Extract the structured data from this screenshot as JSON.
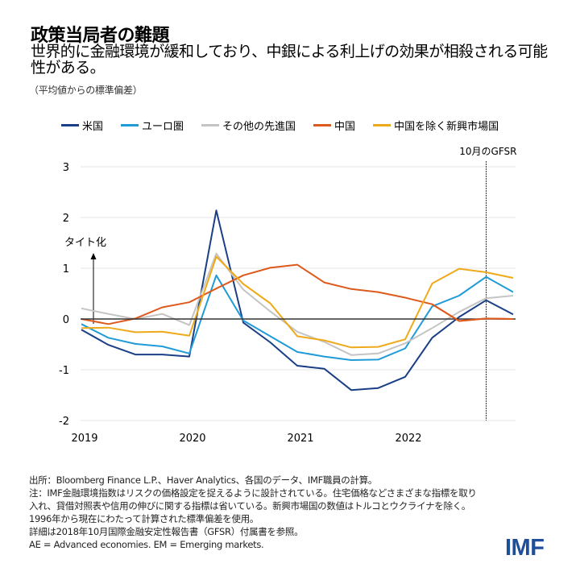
{
  "header": {
    "title": "政策当局者の難題",
    "subtitle": "世界的に金融環境が緩和しており、中銀による利上げの効果が相殺される可能性がある。",
    "unit": "（平均値からの標準偏差）"
  },
  "chart_data": {
    "type": "line",
    "title": "政策当局者の難題",
    "ylabel": "",
    "xlabel": "",
    "ylim": [
      -2,
      3
    ],
    "yticks": [
      "3",
      "2",
      "1",
      "0",
      "-1",
      "-2"
    ],
    "xticks": [
      "2019",
      "2020",
      "2021",
      "2022"
    ],
    "x": [
      2019.0,
      2019.25,
      2019.5,
      2019.75,
      2020.0,
      2020.25,
      2020.5,
      2020.75,
      2021.0,
      2021.25,
      2021.5,
      2021.75,
      2022.0,
      2022.25,
      2022.5,
      2022.75,
      2023.0
    ],
    "grid": true,
    "legend_position": "top",
    "annotations": {
      "tightening": "タイト化",
      "gfsr_marker": "10月のGFSR",
      "gfsr_x": 2022.75
    },
    "series": [
      {
        "name": "米国",
        "color": "#1a3f87",
        "values": [
          -0.21,
          -0.51,
          -0.7,
          -0.7,
          -0.74,
          2.14,
          -0.07,
          -0.46,
          -0.92,
          -0.98,
          -1.4,
          -1.36,
          -1.14,
          -0.37,
          0.04,
          0.37,
          0.09
        ]
      },
      {
        "name": "ユーロ圏",
        "color": "#1f9bd7",
        "values": [
          -0.1,
          -0.37,
          -0.49,
          -0.54,
          -0.68,
          0.86,
          -0.03,
          -0.34,
          -0.65,
          -0.74,
          -0.81,
          -0.8,
          -0.58,
          0.25,
          0.46,
          0.83,
          0.53
        ]
      },
      {
        "name": "その他の先進国",
        "color": "#c4c4c4",
        "values": [
          0.21,
          0.1,
          0.0,
          0.1,
          -0.12,
          1.29,
          0.58,
          0.15,
          -0.25,
          -0.45,
          -0.71,
          -0.68,
          -0.48,
          -0.18,
          0.14,
          0.41,
          0.46
        ]
      },
      {
        "name": "中国",
        "color": "#de5a1c",
        "values": [
          0.0,
          -0.1,
          0.01,
          0.23,
          0.33,
          0.6,
          0.86,
          1.01,
          1.07,
          0.72,
          0.59,
          0.53,
          0.42,
          0.29,
          -0.04,
          0.01,
          0.0
        ]
      },
      {
        "name": "中国を除く新興市場国",
        "color": "#eeaa1a",
        "values": [
          -0.18,
          -0.17,
          -0.26,
          -0.25,
          -0.33,
          1.23,
          0.69,
          0.31,
          -0.34,
          -0.42,
          -0.56,
          -0.55,
          -0.4,
          0.7,
          0.99,
          0.92,
          0.81
        ]
      }
    ]
  },
  "notes": [
    "出所：Bloomberg Finance L.P.、Haver Analytics、各国のデータ、IMF職員の計算。",
    "注：IMF金融環境指数はリスクの価格設定を捉えるように設計されている。住宅価格などさまざまな指標を取り",
    "入れ、貸借対照表や信用の伸びに関する指標は省いている。新興市場国の数値はトルコとウクライナを除く。",
    "1996年から現在にわたって計算された標準偏差を使用。",
    "詳細は2018年10月国際金融安定性報告書（GFSR）付属書を参照。",
    "AE = Advanced economies. EM = Emerging markets."
  ],
  "logo": "IMF"
}
